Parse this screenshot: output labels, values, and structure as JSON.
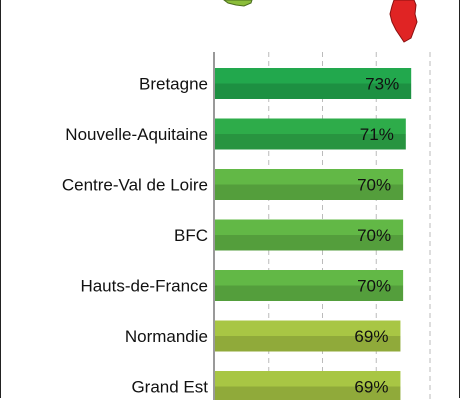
{
  "chart_data": {
    "type": "bar",
    "orientation": "horizontal",
    "categories": [
      "Bretagne",
      "Nouvelle-Aquitaine",
      "Centre-Val de Loire",
      "BFC",
      "Hauts-de-France",
      "Normandie",
      "Grand Est"
    ],
    "values": [
      73,
      71,
      70,
      70,
      70,
      69,
      69
    ],
    "value_labels": [
      "73%",
      "71%",
      "70%",
      "70%",
      "70%",
      "69%",
      "69%"
    ],
    "bar_colors": [
      "#22a84d",
      "#2eac4a",
      "#62b846",
      "#62b846",
      "#62b846",
      "#a8c644",
      "#a8c644"
    ],
    "title": "",
    "xlabel": "",
    "ylabel": "",
    "xlim": [
      0,
      80
    ],
    "grid": "dashed vertical",
    "legend": "none"
  },
  "decor": {
    "left_map_icon": "region-map-green-icon",
    "left_map_color": "#8bbd3a",
    "right_map_icon": "corsica-map-red-icon",
    "right_map_color": "#e02424"
  }
}
